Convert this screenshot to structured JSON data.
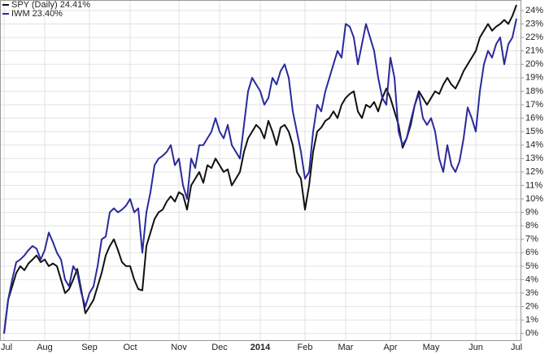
{
  "chart_data": {
    "type": "line",
    "categories": [
      "Jul",
      null,
      null,
      null,
      null,
      null,
      null,
      null,
      null,
      null,
      "Aug",
      null,
      null,
      null,
      null,
      null,
      null,
      null,
      null,
      null,
      null,
      "Sep",
      null,
      null,
      null,
      null,
      null,
      null,
      null,
      null,
      null,
      "Oct",
      null,
      null,
      null,
      null,
      null,
      null,
      null,
      null,
      null,
      null,
      null,
      "Nov",
      null,
      null,
      null,
      null,
      null,
      null,
      null,
      null,
      null,
      "Dec",
      null,
      null,
      null,
      null,
      null,
      null,
      null,
      null,
      null,
      "2014",
      null,
      null,
      null,
      null,
      null,
      null,
      null,
      null,
      null,
      null,
      "Feb",
      null,
      null,
      null,
      null,
      null,
      null,
      null,
      null,
      null,
      "Mar",
      null,
      null,
      null,
      null,
      null,
      null,
      null,
      null,
      null,
      null,
      "Apr",
      null,
      null,
      null,
      null,
      null,
      null,
      null,
      null,
      null,
      "May",
      null,
      null,
      null,
      null,
      null,
      null,
      null,
      null,
      null,
      null,
      "Jun",
      null,
      null,
      null,
      null,
      null,
      null,
      null,
      null,
      null,
      "Jul"
    ],
    "series": [
      {
        "name": "SPY (Daily) 24.41%",
        "color": "#111111",
        "values": [
          0,
          2.5,
          3.5,
          4.5,
          5,
          4.7,
          5.2,
          5.5,
          5.8,
          5.3,
          5.5,
          5.0,
          5.2,
          5.0,
          4.0,
          3.0,
          3.3,
          4.0,
          4.8,
          3.2,
          1.5,
          2.0,
          2.5,
          3.5,
          4.5,
          5.8,
          6.5,
          7.0,
          6.2,
          5.3,
          5.0,
          5.0,
          4.0,
          3.3,
          3.2,
          6.5,
          7.5,
          8.5,
          9.0,
          9.2,
          9.8,
          10.2,
          9.8,
          10.5,
          10.3,
          9.2,
          11.0,
          11.5,
          12.0,
          11.2,
          12.5,
          12.3,
          13.0,
          12.5,
          12.0,
          12.2,
          11.0,
          11.5,
          12.0,
          13.5,
          14.5,
          15.0,
          15.5,
          15.2,
          14.5,
          15.8,
          15.0,
          14.0,
          15.3,
          15.5,
          15.0,
          14.0,
          12.0,
          11.5,
          9.2,
          11.0,
          13.5,
          15.0,
          15.3,
          15.8,
          16.0,
          16.5,
          16.0,
          17.0,
          17.5,
          17.8,
          18.0,
          16.5,
          16.0,
          17.0,
          16.8,
          17.2,
          16.5,
          17.5,
          18.2,
          17.5,
          16.5,
          15.5,
          13.8,
          14.5,
          15.5,
          17.0,
          18.0,
          17.5,
          17.0,
          17.5,
          18.0,
          17.8,
          18.5,
          19.0,
          18.5,
          18.2,
          18.8,
          19.5,
          20.0,
          20.5,
          21.0,
          22.0,
          22.5,
          23.0,
          22.5,
          22.8,
          23.0,
          23.3,
          23.0,
          23.6,
          24.41
        ]
      },
      {
        "name": "IWM 23.40%",
        "color": "#2a2a9c",
        "values": [
          0,
          2.5,
          4,
          5.3,
          5.5,
          5.8,
          6.2,
          6.5,
          6.3,
          5.5,
          6.2,
          7.5,
          6.8,
          6.0,
          5.5,
          4.0,
          3.5,
          5.0,
          4.5,
          3.0,
          2.0,
          3.0,
          3.5,
          5.0,
          7.0,
          7.2,
          9.0,
          9.3,
          9.0,
          9.2,
          9.5,
          10.0,
          9.0,
          9.3,
          6.0,
          9.0,
          10.5,
          12.5,
          13.0,
          13.2,
          13.5,
          14.0,
          12.5,
          13.0,
          11.0,
          10.0,
          13.0,
          12.3,
          14.0,
          14.0,
          14.5,
          15.0,
          16.0,
          15.0,
          14.5,
          15.5,
          14.0,
          13.5,
          13.0,
          15.5,
          18.0,
          19.0,
          18.5,
          18.0,
          17.0,
          17.5,
          19.0,
          18.5,
          19.5,
          20.0,
          19.0,
          16.5,
          15.0,
          13.5,
          11.5,
          12.0,
          15.0,
          17.0,
          16.5,
          18.0,
          19.0,
          20.0,
          21.0,
          20.5,
          23.0,
          22.8,
          22.0,
          20.0,
          21.5,
          23.0,
          22.0,
          21.0,
          19.0,
          17.5,
          17.0,
          20.5,
          19.0,
          15.0,
          14.0,
          14.5,
          15.8,
          17.0,
          17.8,
          16.0,
          15.5,
          16.0,
          15.0,
          13.0,
          12.0,
          14.0,
          12.5,
          12.0,
          12.8,
          14.5,
          16.8,
          16.0,
          15.0,
          18.0,
          20.0,
          21.0,
          20.5,
          21.5,
          22.0,
          20.0,
          21.5,
          22.0,
          23.4
        ]
      }
    ],
    "ylim": [
      -0.5,
      24.6
    ],
    "yticks": [
      {
        "value": 0,
        "label": "0%"
      },
      {
        "value": 1,
        "label": "1%"
      },
      {
        "value": 2,
        "label": "2%"
      },
      {
        "value": 3,
        "label": "3%"
      },
      {
        "value": 4,
        "label": "4%"
      },
      {
        "value": 5,
        "label": "5%"
      },
      {
        "value": 6,
        "label": "6%"
      },
      {
        "value": 7,
        "label": "7%"
      },
      {
        "value": 8,
        "label": "8%"
      },
      {
        "value": 9,
        "label": "9%"
      },
      {
        "value": 10,
        "label": "10%"
      },
      {
        "value": 11,
        "label": "11%"
      },
      {
        "value": 12,
        "label": "12%"
      },
      {
        "value": 13,
        "label": "13%"
      },
      {
        "value": 14,
        "label": "14%"
      },
      {
        "value": 15,
        "label": "15%"
      },
      {
        "value": 16,
        "label": "16%"
      },
      {
        "value": 17,
        "label": "17%"
      },
      {
        "value": 18,
        "label": "18%"
      },
      {
        "value": 19,
        "label": "19%"
      },
      {
        "value": 20,
        "label": "20%"
      },
      {
        "value": 21,
        "label": "21%"
      },
      {
        "value": 22,
        "label": "22%"
      },
      {
        "value": 23,
        "label": "23%"
      },
      {
        "value": 24,
        "label": "24%"
      }
    ],
    "grid": true
  }
}
